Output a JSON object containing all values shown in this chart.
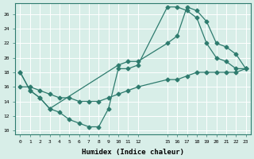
{
  "xlabel": "Humidex (Indice chaleur)",
  "bg_color": "#d8eee8",
  "grid_color": "#ffffff",
  "line_color": "#2e7b6e",
  "xlim": [
    -0.5,
    23.5
  ],
  "ylim": [
    9.5,
    27.5
  ],
  "xticks": [
    0,
    1,
    2,
    3,
    4,
    5,
    6,
    7,
    8,
    9,
    10,
    11,
    12,
    15,
    16,
    17,
    18,
    19,
    20,
    21,
    22,
    23
  ],
  "yticks": [
    10,
    12,
    14,
    16,
    18,
    20,
    22,
    24,
    26
  ],
  "line1_x": [
    0,
    1,
    2,
    3,
    4,
    5,
    6,
    7,
    8,
    9,
    10,
    11,
    12,
    15,
    16,
    17,
    18,
    19,
    20,
    21,
    22,
    23
  ],
  "line1_y": [
    18,
    15.5,
    14.5,
    13,
    12.5,
    11.5,
    11,
    10.5,
    10.5,
    13,
    18.5,
    18.5,
    19,
    27,
    27,
    26.5,
    25.5,
    22,
    20,
    19.5,
    18.5,
    18.5
  ],
  "line2_x": [
    0,
    1,
    2,
    3,
    10,
    11,
    12,
    15,
    16,
    17,
    18,
    19,
    20,
    21,
    22,
    23
  ],
  "line2_y": [
    18,
    15.5,
    14.5,
    13,
    19,
    19.5,
    19.5,
    22,
    23,
    27,
    26.5,
    25,
    22,
    21.5,
    20.5,
    18.5
  ],
  "line3_x": [
    0,
    1,
    2,
    3,
    4,
    5,
    6,
    7,
    8,
    9,
    10,
    11,
    12,
    15,
    16,
    17,
    18,
    19,
    20,
    21,
    22,
    23
  ],
  "line3_y": [
    16,
    16,
    15.5,
    15,
    14.5,
    14.5,
    14,
    14,
    14,
    14.5,
    15,
    15.5,
    16,
    17,
    17,
    17.5,
    18,
    18,
    18,
    18,
    18,
    18.5
  ],
  "marker": "D",
  "marker_size": 2.5,
  "line_width": 0.9
}
